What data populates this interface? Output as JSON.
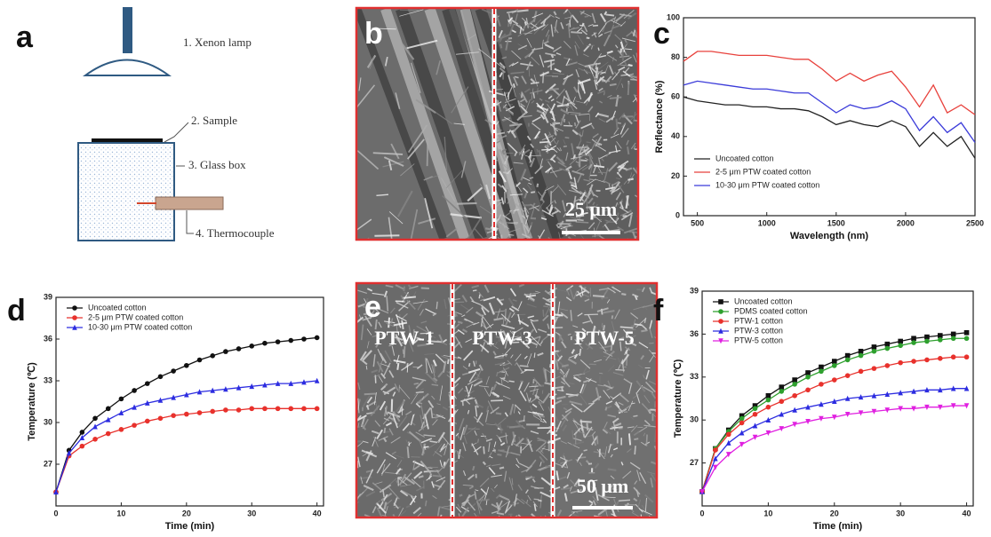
{
  "panel_labels": [
    "a",
    "b",
    "c",
    "d",
    "e",
    "f"
  ],
  "diagram": {
    "labels": [
      "1. Xenon lamp",
      "2. Sample",
      "3. Glass box",
      "4. Thermocouple"
    ]
  },
  "micrographs": {
    "b": {
      "scale_bar": "25 μm"
    },
    "e": {
      "labels": [
        "PTW-1",
        "PTW-3",
        "PTW-5"
      ],
      "scale_bar": "50 μm"
    }
  },
  "chart_data": [
    {
      "type": "line",
      "xlabel": "Wavelength (nm)",
      "ylabel": "Reflectance (%)",
      "legend": "lower left",
      "xlim": [
        400,
        2500
      ],
      "ylim": [
        0,
        100
      ],
      "xticks": [
        500,
        1000,
        1500,
        2000,
        2500
      ],
      "yticks": [
        0,
        20,
        40,
        60,
        80,
        100
      ],
      "x": [
        400,
        500,
        600,
        700,
        800,
        900,
        1000,
        1100,
        1200,
        1300,
        1400,
        1500,
        1600,
        1700,
        1800,
        1900,
        2000,
        2100,
        2200,
        2300,
        2400,
        2500
      ],
      "series": [
        {
          "name": "Uncoated cotton",
          "color": "#222222",
          "values": [
            60,
            58,
            57,
            56,
            56,
            55,
            55,
            54,
            54,
            53,
            50,
            46,
            48,
            46,
            45,
            48,
            45,
            35,
            42,
            35,
            40,
            29
          ]
        },
        {
          "name": "2-5 μm PTW coated cotton",
          "color": "#e8413c",
          "values": [
            78,
            83,
            83,
            82,
            81,
            81,
            81,
            80,
            79,
            79,
            74,
            68,
            72,
            68,
            71,
            73,
            65,
            55,
            66,
            52,
            56,
            51
          ]
        },
        {
          "name": "10-30 μm PTW coated cotton",
          "color": "#3b3bd9",
          "values": [
            66,
            68,
            67,
            66,
            65,
            64,
            64,
            63,
            62,
            62,
            57,
            52,
            56,
            54,
            55,
            58,
            54,
            43,
            50,
            42,
            47,
            37
          ]
        }
      ]
    },
    {
      "type": "line",
      "xlabel": "Time (min)",
      "ylabel": "Temperature (℃)",
      "legend": "upper left",
      "xlim": [
        0,
        41
      ],
      "ylim": [
        24,
        39
      ],
      "xticks": [
        0,
        10,
        20,
        30,
        40
      ],
      "yticks": [
        27,
        30,
        33,
        36,
        39
      ],
      "x": [
        0,
        2,
        4,
        6,
        8,
        10,
        12,
        14,
        16,
        18,
        20,
        22,
        24,
        26,
        28,
        30,
        32,
        34,
        36,
        38,
        40
      ],
      "series": [
        {
          "name": "Uncoated cotton",
          "color": "#111111",
          "marker": "circle",
          "values": [
            25,
            28,
            29.3,
            30.3,
            31,
            31.7,
            32.3,
            32.8,
            33.3,
            33.7,
            34.1,
            34.5,
            34.8,
            35.1,
            35.3,
            35.5,
            35.7,
            35.8,
            35.9,
            36,
            36.1
          ]
        },
        {
          "name": "2-5 μm PTW coated cotton",
          "color": "#e8312c",
          "marker": "circle",
          "values": [
            25,
            27.6,
            28.3,
            28.8,
            29.2,
            29.5,
            29.8,
            30.1,
            30.3,
            30.5,
            30.6,
            30.7,
            30.8,
            30.9,
            30.9,
            31,
            31,
            31,
            31,
            31,
            31
          ]
        },
        {
          "name": "10-30 μm PTW coated cotton",
          "color": "#2c2ce0",
          "marker": "triangle",
          "values": [
            25,
            27.8,
            28.9,
            29.7,
            30.2,
            30.7,
            31.1,
            31.4,
            31.6,
            31.8,
            32,
            32.2,
            32.3,
            32.4,
            32.5,
            32.6,
            32.7,
            32.8,
            32.8,
            32.9,
            33
          ]
        }
      ]
    },
    {
      "type": "line",
      "xlabel": "Time (min)",
      "ylabel": "Temperature (℃)",
      "legend": "upper left",
      "xlim": [
        0,
        41
      ],
      "ylim": [
        24,
        39
      ],
      "xticks": [
        0,
        10,
        20,
        30,
        40
      ],
      "yticks": [
        27,
        30,
        33,
        36,
        39
      ],
      "x": [
        0,
        2,
        4,
        6,
        8,
        10,
        12,
        14,
        16,
        18,
        20,
        22,
        24,
        26,
        28,
        30,
        32,
        34,
        36,
        38,
        40
      ],
      "series": [
        {
          "name": "Uncoated cotton",
          "color": "#111111",
          "marker": "square",
          "values": [
            25,
            28,
            29.3,
            30.3,
            31,
            31.7,
            32.3,
            32.8,
            33.3,
            33.7,
            34.1,
            34.5,
            34.8,
            35.1,
            35.3,
            35.5,
            35.7,
            35.8,
            35.9,
            36,
            36.1
          ]
        },
        {
          "name": "PDMS coated cotton",
          "color": "#2ea02e",
          "marker": "circle",
          "values": [
            25,
            28,
            29.2,
            30.1,
            30.8,
            31.4,
            32,
            32.5,
            33,
            33.4,
            33.8,
            34.2,
            34.5,
            34.8,
            35,
            35.2,
            35.4,
            35.5,
            35.6,
            35.7,
            35.7
          ]
        },
        {
          "name": "PTW-1 cotton",
          "color": "#e8312c",
          "marker": "circle",
          "values": [
            25,
            27.9,
            29,
            29.8,
            30.4,
            30.9,
            31.3,
            31.7,
            32.1,
            32.5,
            32.8,
            33.1,
            33.4,
            33.6,
            33.8,
            34,
            34.1,
            34.2,
            34.3,
            34.4,
            34.4
          ]
        },
        {
          "name": "PTW-3 cotton",
          "color": "#2c2ce0",
          "marker": "triangle",
          "values": [
            25,
            27.3,
            28.4,
            29.1,
            29.6,
            30,
            30.4,
            30.7,
            30.9,
            31.1,
            31.3,
            31.5,
            31.6,
            31.7,
            31.8,
            31.9,
            32,
            32.1,
            32.1,
            32.2,
            32.2
          ]
        },
        {
          "name": "PTW-5 cotton",
          "color": "#e020e0",
          "marker": "triangle-down",
          "values": [
            25,
            26.7,
            27.6,
            28.3,
            28.8,
            29.1,
            29.4,
            29.7,
            29.9,
            30.1,
            30.2,
            30.4,
            30.5,
            30.6,
            30.7,
            30.8,
            30.8,
            30.9,
            30.9,
            31,
            31
          ]
        }
      ]
    }
  ]
}
